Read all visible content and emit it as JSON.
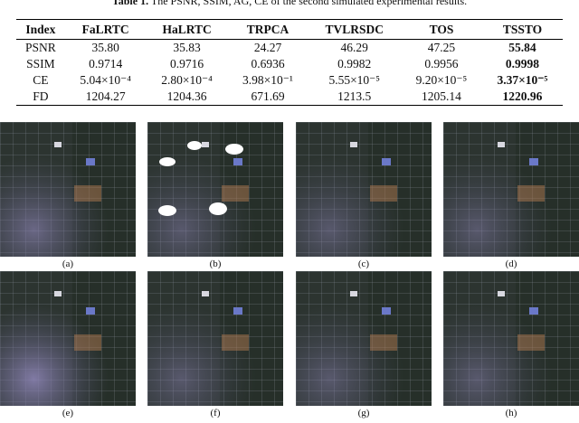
{
  "caption": {
    "label": "Table 1.",
    "text": "The PSNR, SSIM, AG, CE of the second simulated experimental results."
  },
  "table": {
    "header": [
      "Index",
      "FaLRTC",
      "HaLRTC",
      "TRPCA",
      "TVLRSDC",
      "TOS",
      "TSSTO"
    ],
    "rows": [
      [
        "PSNR",
        "35.80",
        "35.83",
        "24.27",
        "46.29",
        "47.25",
        "55.84"
      ],
      [
        "SSIM",
        "0.9714",
        "0.9716",
        "0.6936",
        "0.9982",
        "0.9956",
        "0.9998"
      ],
      [
        "CE",
        "5.04×10⁻⁴",
        "2.80×10⁻⁴",
        "3.98×10⁻¹",
        "5.55×10⁻⁵",
        "9.20×10⁻⁵",
        "3.37×10⁻⁵"
      ],
      [
        "FD",
        "1204.27",
        "1204.36",
        "671.69",
        "1213.5",
        "1205.14",
        "1220.96"
      ]
    ]
  },
  "figures": [
    "(a)",
    "(b)",
    "(c)",
    "(d)",
    "(e)",
    "(f)",
    "(g)",
    "(h)"
  ]
}
